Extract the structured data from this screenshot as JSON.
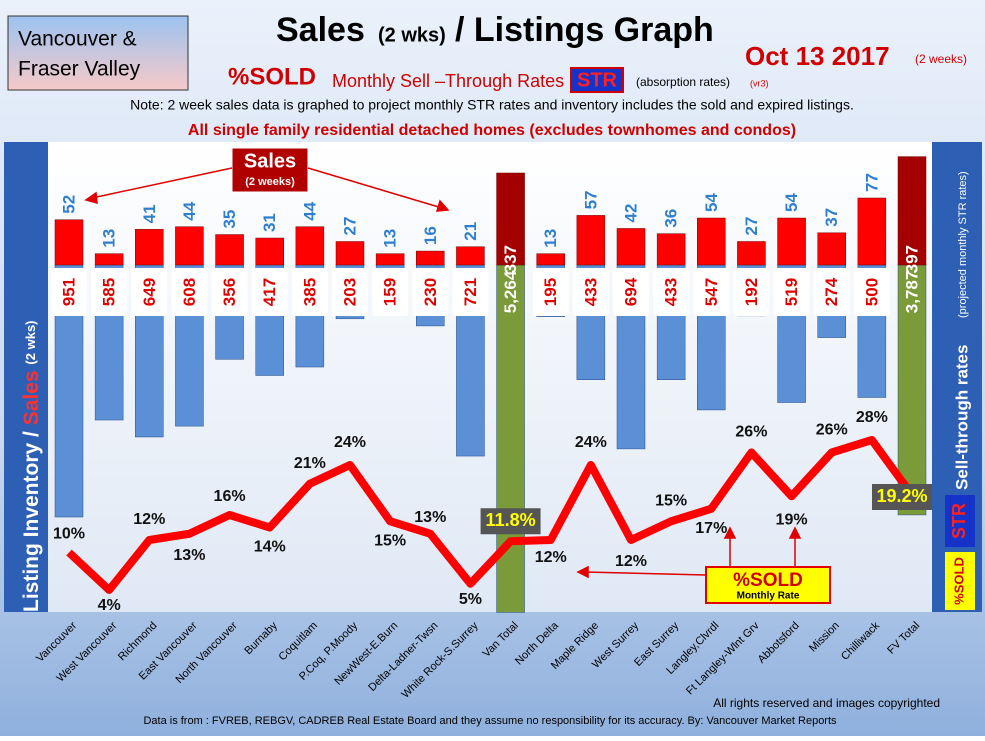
{
  "header": {
    "region": [
      "Vancouver &",
      "Fraser Valley"
    ],
    "title_main": "Sales",
    "title_paren": "(2 wks)",
    "title_rest": "/ Listings Graph",
    "date": "Oct 13 2017",
    "date_note": "(2 weeks)",
    "subtitle_sold": "%SOLD",
    "subtitle_rest": "Monthly Sell –Through Rates",
    "subtitle_str": "STR",
    "subtitle_abs": "(absorption rates)",
    "subtitle_ver": "(vr3)",
    "note": "Note: 2 week sales data is graphed to project monthly STR rates and inventory includes the sold and expired listings.",
    "scope": "All single family residential detached homes (excludes townhomes and condos)"
  },
  "left_axis": {
    "part1": "Listing Inventory /",
    "part2": "Sales",
    "part3": "(2 wks)"
  },
  "right_axis": {
    "main": "Sell-through rates",
    "sub": "(projected monthly STR rates)",
    "str": "STR",
    "sold": "%SOLD"
  },
  "annotations": {
    "sales": "Sales",
    "sales_sub": "(2 weeks)",
    "sold": "%SOLD",
    "sold_sub": "Monthly Rate"
  },
  "footer": {
    "rights": "All rights reserved and  images copyrighted",
    "source": "Data is from : FVREB, REBGV, CADREB Real Estate Board and they assume no responsibility for its accuracy. By: Vancouver Market Reports"
  },
  "chart_data": {
    "type": "bar",
    "categories": [
      "Vancouver",
      "West Vancouver",
      "Richmond",
      "East Vancouver",
      "North Vancouver",
      "Burnaby",
      "Coquitlam",
      "P.Coq, P.Moody",
      "NewWest-E.Burn",
      "Delta-Ladner-Twsn",
      "White Rock-S.Surrey",
      "Van Total",
      "North Delta",
      "Maple Ridge",
      "West Surrey",
      "East Surrey",
      "Langley,Clvrdl",
      "Ft Langley-Wlnt Grv",
      "Abbotsford",
      "Mission",
      "Chilliwack",
      "FV Total"
    ],
    "highlight": [
      11,
      21
    ],
    "series": [
      {
        "color": "#ff0000",
        "highlight_color": "#a50000",
        "values": [
          52,
          13,
          41,
          44,
          35,
          31,
          44,
          27,
          13,
          16,
          21,
          337,
          13,
          57,
          42,
          36,
          54,
          27,
          54,
          37,
          77,
          397
        ]
      },
      {
        "color": "#5b8fd6",
        "highlight_color": "#7b9a3a",
        "values": [
          951,
          585,
          649,
          608,
          356,
          417,
          385,
          203,
          159,
          230,
          721,
          5264,
          195,
          433,
          694,
          433,
          547,
          192,
          519,
          274,
          500,
          3787
        ],
        "value_labels": [
          "951",
          "585",
          "649",
          "608",
          "356",
          "417",
          "385",
          "203",
          "159",
          "230",
          "721",
          "5,264",
          "195",
          "433",
          "694",
          "433",
          "547",
          "192",
          "519",
          "274",
          "500",
          "3,787"
        ]
      },
      {
        "type": "line",
        "color": "#ff0000",
        "values": [
          10,
          4,
          12,
          13,
          16,
          14,
          21,
          24,
          15,
          13,
          5,
          11.8,
          12,
          24,
          12,
          15,
          17,
          26,
          19,
          26,
          28,
          19.2
        ],
        "value_labels": [
          "10%",
          "4%",
          "12%",
          "13%",
          "16%",
          "14%",
          "21%",
          "24%",
          "15%",
          "13%",
          "5%",
          "11.8%",
          "12%",
          "24%",
          "12%",
          "15%",
          "17%",
          "26%",
          "19%",
          "26%",
          "28%",
          "19.2%"
        ]
      }
    ]
  }
}
